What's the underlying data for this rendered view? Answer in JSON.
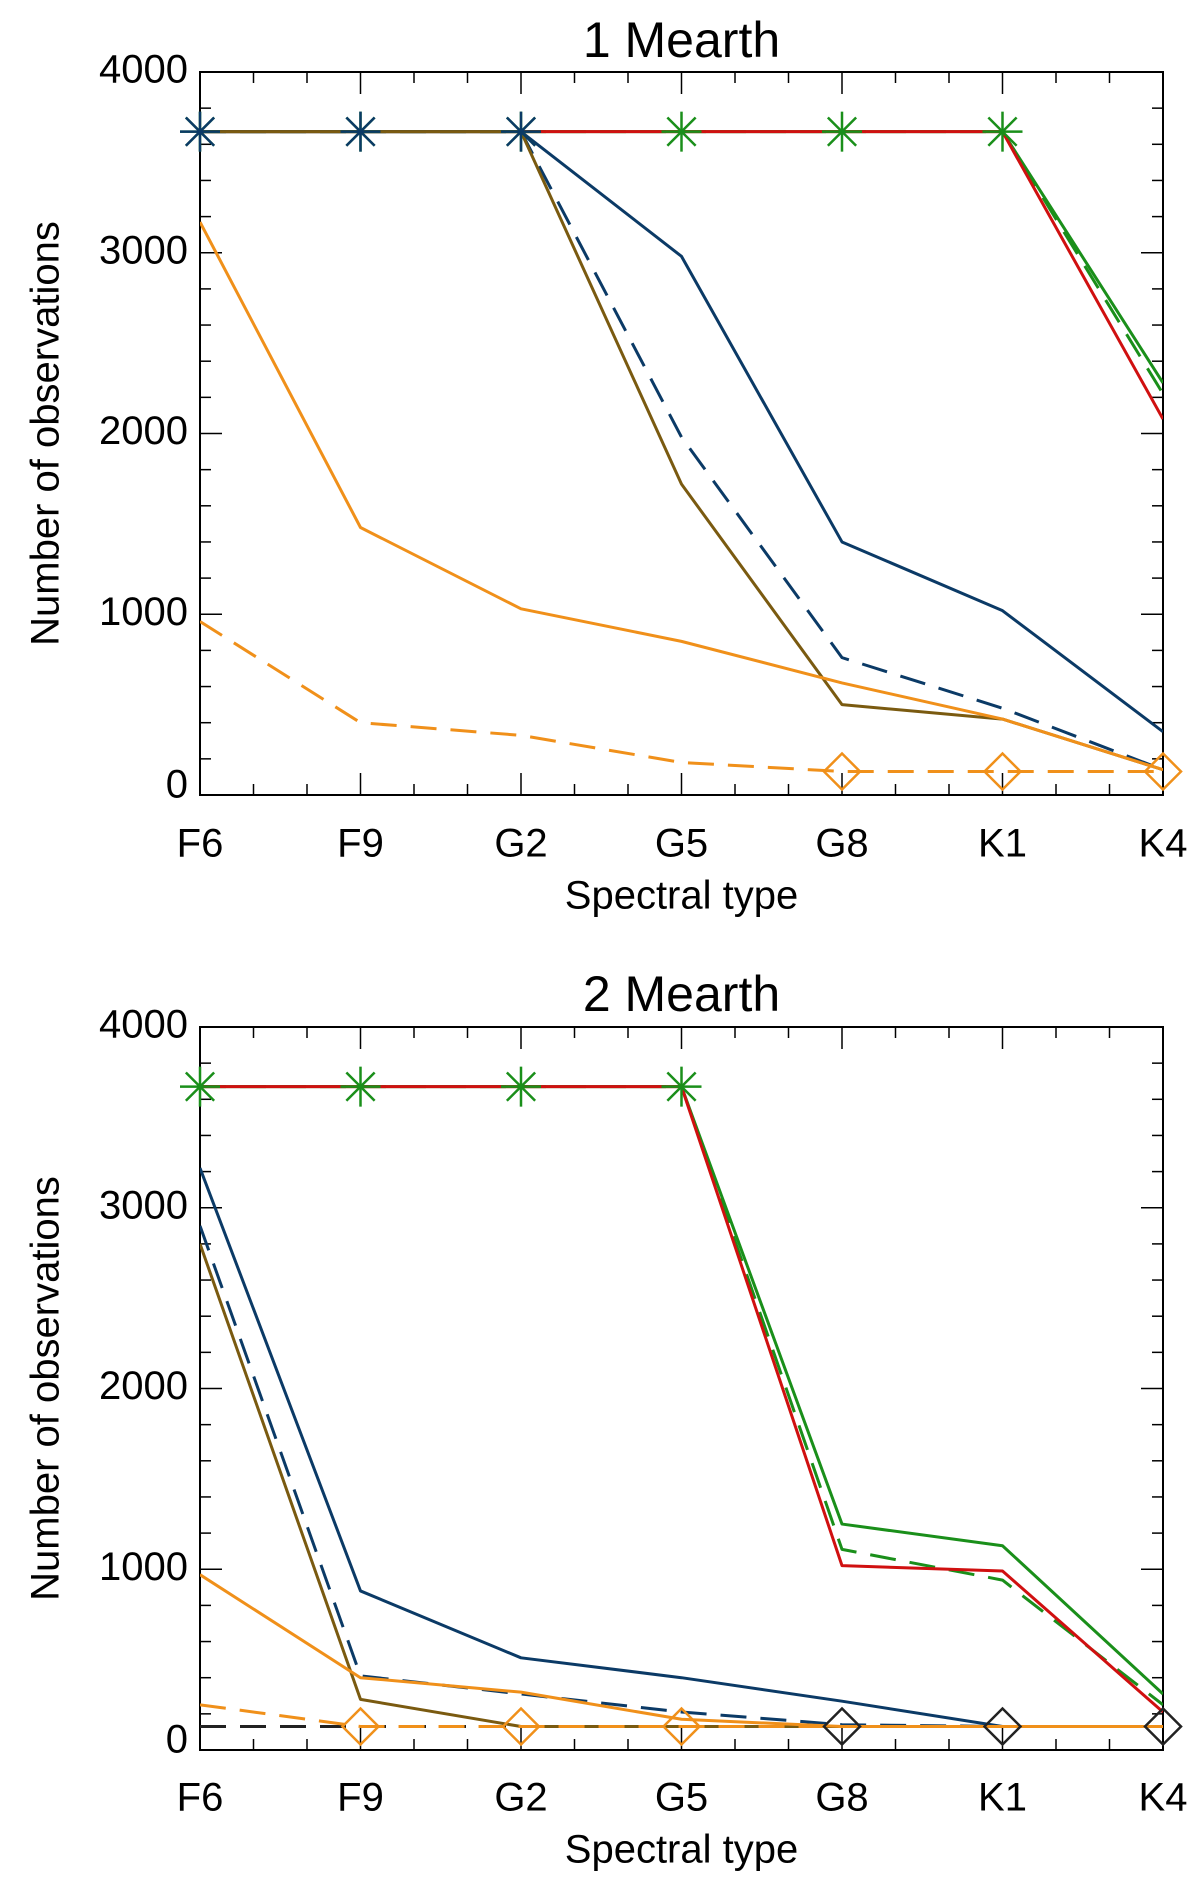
{
  "chart_data": [
    {
      "type": "line",
      "title": "1 Mearth",
      "xlabel": "Spectral type",
      "ylabel": "Number of observations",
      "categories": [
        "F6",
        "F9",
        "G2",
        "G5",
        "G8",
        "K1",
        "K4"
      ],
      "yticks": [
        "0",
        "1000",
        "2000",
        "3000",
        "4000"
      ],
      "ylim": [
        0,
        4000
      ],
      "series": [
        {
          "name": "green solid",
          "color": "#1a8f1a",
          "dash": "solid",
          "values": [
            3670,
            3670,
            3670,
            3670,
            3670,
            3670,
            2280
          ],
          "markers": [
            true,
            true,
            true,
            true,
            true,
            true,
            false
          ],
          "marker": "asterisk"
        },
        {
          "name": "green dashed",
          "color": "#1a8f1a",
          "dash": "dashed",
          "values": [
            3670,
            3670,
            3670,
            3670,
            3670,
            3670,
            2220
          ],
          "markers": [
            false,
            false,
            false,
            false,
            false,
            false,
            false
          ],
          "marker": "none"
        },
        {
          "name": "red solid",
          "color": "#d01010",
          "dash": "solid",
          "values": [
            3670,
            3670,
            3670,
            3670,
            3670,
            3670,
            2080
          ],
          "markers": [
            false,
            false,
            false,
            false,
            false,
            false,
            false
          ],
          "marker": "none"
        },
        {
          "name": "navy solid",
          "color": "#0b3a66",
          "dash": "solid",
          "values": [
            3670,
            3670,
            3670,
            2980,
            1400,
            1020,
            350
          ],
          "markers": [
            true,
            true,
            true,
            false,
            false,
            false,
            false
          ],
          "marker": "asterisk"
        },
        {
          "name": "navy dashed",
          "color": "#0b3a66",
          "dash": "dashed",
          "values": [
            3670,
            3670,
            3670,
            1980,
            760,
            480,
            140
          ],
          "markers": [
            false,
            false,
            false,
            false,
            false,
            false,
            false
          ],
          "marker": "none"
        },
        {
          "name": "brown solid",
          "color": "#7a5a10",
          "dash": "solid",
          "values": [
            3670,
            3670,
            3670,
            1720,
            500,
            420,
            140
          ],
          "markers": [
            false,
            false,
            false,
            false,
            false,
            false,
            false
          ],
          "marker": "none"
        },
        {
          "name": "orange solid",
          "color": "#f0901a",
          "dash": "solid",
          "values": [
            3170,
            1480,
            1030,
            850,
            620,
            420,
            140
          ],
          "markers": [
            false,
            false,
            false,
            false,
            false,
            false,
            false
          ],
          "marker": "none"
        },
        {
          "name": "orange dashed",
          "color": "#f0901a",
          "dash": "dashed",
          "values": [
            960,
            400,
            330,
            180,
            130,
            130,
            130
          ],
          "markers": [
            false,
            false,
            false,
            false,
            true,
            true,
            true
          ],
          "marker": "diamond"
        }
      ]
    },
    {
      "type": "line",
      "title": "2 Mearth",
      "xlabel": "Spectral type",
      "ylabel": "Number of observations",
      "categories": [
        "F6",
        "F9",
        "G2",
        "G5",
        "G8",
        "K1",
        "K4"
      ],
      "yticks": [
        "0",
        "1000",
        "2000",
        "3000",
        "4000"
      ],
      "ylim": [
        0,
        4000
      ],
      "series": [
        {
          "name": "green solid",
          "color": "#1a8f1a",
          "dash": "solid",
          "values": [
            3670,
            3670,
            3670,
            3670,
            1250,
            1130,
            310
          ],
          "markers": [
            true,
            true,
            true,
            true,
            false,
            false,
            false
          ],
          "marker": "asterisk"
        },
        {
          "name": "green dashed",
          "color": "#1a8f1a",
          "dash": "dashed",
          "values": [
            3670,
            3670,
            3670,
            3670,
            1110,
            940,
            250
          ],
          "markers": [
            false,
            false,
            false,
            false,
            false,
            false,
            false
          ],
          "marker": "none"
        },
        {
          "name": "red solid",
          "color": "#d01010",
          "dash": "solid",
          "values": [
            3670,
            3670,
            3670,
            3670,
            1020,
            990,
            210
          ],
          "markers": [
            false,
            false,
            false,
            false,
            false,
            false,
            false
          ],
          "marker": "none"
        },
        {
          "name": "navy solid",
          "color": "#0b3a66",
          "dash": "solid",
          "values": [
            3220,
            880,
            510,
            400,
            270,
            130,
            130
          ],
          "markers": [
            false,
            false,
            false,
            false,
            false,
            false,
            false
          ],
          "marker": "none"
        },
        {
          "name": "navy dashed",
          "color": "#0b3a66",
          "dash": "dashed",
          "values": [
            2900,
            410,
            310,
            210,
            140,
            130,
            130
          ],
          "markers": [
            false,
            false,
            false,
            false,
            false,
            false,
            false
          ],
          "marker": "none"
        },
        {
          "name": "black diamonds",
          "color": "#222222",
          "dash": "dashed",
          "values": [
            130,
            130,
            130,
            130,
            130,
            130,
            130
          ],
          "markers": [
            false,
            false,
            false,
            false,
            true,
            true,
            true
          ],
          "marker": "diamond"
        },
        {
          "name": "brown solid",
          "color": "#7a5a10",
          "dash": "solid",
          "values": [
            2800,
            280,
            130,
            130,
            130,
            130,
            130
          ],
          "markers": [
            false,
            false,
            false,
            false,
            false,
            false,
            false
          ],
          "marker": "none"
        },
        {
          "name": "orange solid",
          "color": "#f0901a",
          "dash": "solid",
          "values": [
            970,
            400,
            320,
            170,
            130,
            130,
            130
          ],
          "markers": [
            false,
            false,
            false,
            false,
            false,
            false,
            false
          ],
          "marker": "none"
        },
        {
          "name": "orange dashed",
          "color": "#f0901a",
          "dash": "dashed",
          "values": [
            250,
            130,
            130,
            130,
            130,
            130,
            130
          ],
          "markers": [
            false,
            true,
            true,
            true,
            false,
            false,
            false
          ],
          "marker": "diamond"
        }
      ]
    }
  ]
}
